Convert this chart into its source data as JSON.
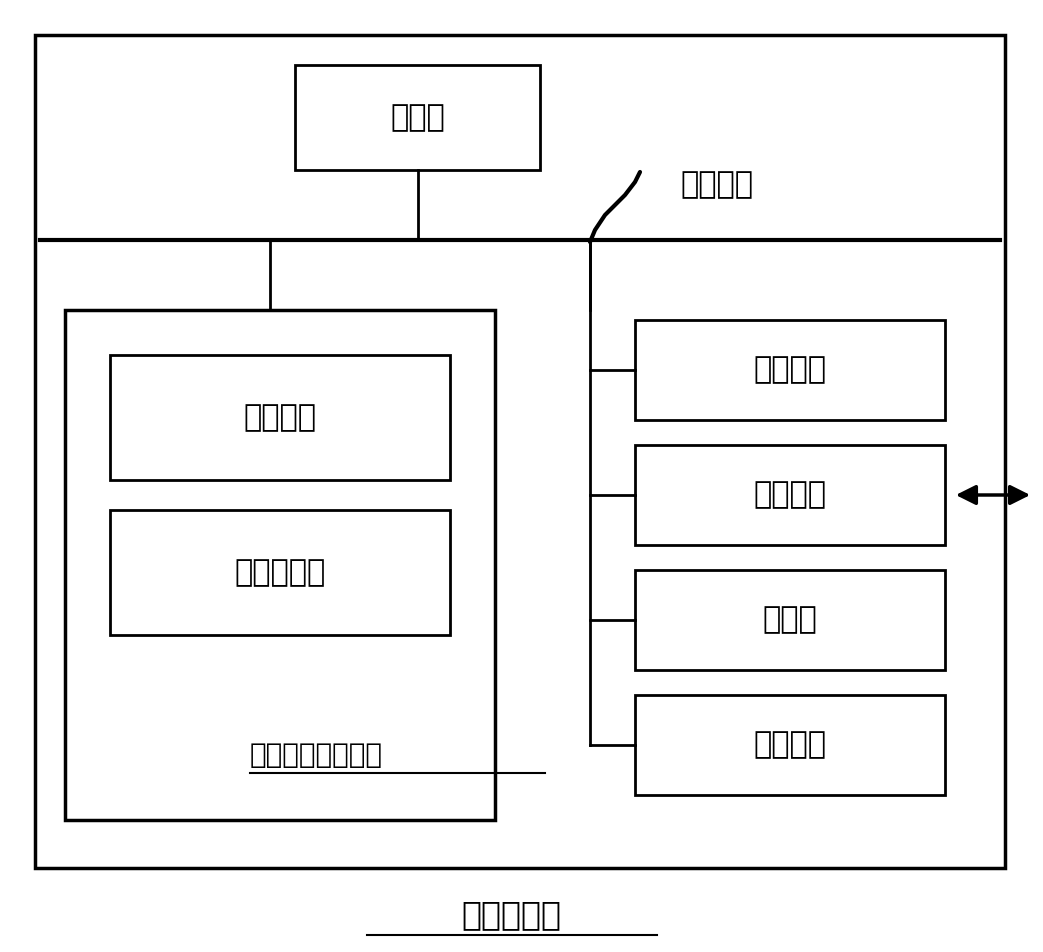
{
  "title": "计算机设备",
  "processor_label": "处理器",
  "system_bus_label": "系统总线",
  "os_label": "操作系统",
  "computer_program_label": "计算机程序",
  "nonvolatile_label": "非易失性存储介质",
  "memory_label": "内存储器",
  "network_label": "网络接口",
  "display_label": "显示屏",
  "input_label": "输入装置",
  "bg_color": "#ffffff",
  "box_edge_color": "#000000",
  "font_color": "#000000",
  "font_size": 22,
  "title_font_size": 24,
  "small_font_size": 20
}
